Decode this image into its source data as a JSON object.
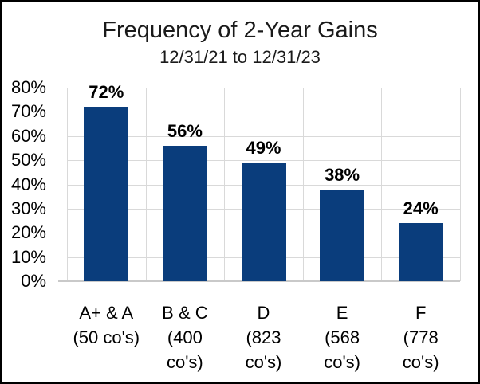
{
  "window": {
    "background": "#ffffff",
    "border_color": "#000000"
  },
  "chart_data": {
    "type": "bar",
    "title": "Frequency of 2-Year Gains",
    "subtitle": "12/31/21 to 12/31/23",
    "categories": [
      "A+ & A (50 co's)",
      "B & C (400 co's)",
      "D (823 co's)",
      "E (568 co's)",
      "F (778 co's)"
    ],
    "category_lines": [
      [
        "A+ & A",
        "(50 co's)"
      ],
      [
        "B & C",
        "(400",
        "co's)"
      ],
      [
        "D",
        "(823",
        "co's)"
      ],
      [
        "E",
        "(568",
        "co's)"
      ],
      [
        "F",
        "(778",
        "co's)"
      ]
    ],
    "values": [
      72,
      56,
      49,
      38,
      24
    ],
    "value_labels": [
      "72%",
      "56%",
      "49%",
      "38%",
      "24%"
    ],
    "ylim": [
      0,
      80
    ],
    "ytick_step": 10,
    "ytick_labels": [
      "80%",
      "70%",
      "60%",
      "50%",
      "40%",
      "30%",
      "20%",
      "10%",
      "0%"
    ],
    "xlabel": "",
    "ylabel": "",
    "grid": true,
    "legend": "none",
    "bar_color": "#0a3d7c",
    "gridline_color": "#d9d9d9",
    "axis_line_color": "#c9c9c9",
    "label_color": "#000000"
  }
}
